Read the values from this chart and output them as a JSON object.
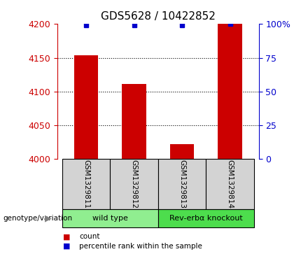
{
  "title": "GDS5628 / 10422852",
  "samples": [
    "GSM1329811",
    "GSM1329812",
    "GSM1329813",
    "GSM1329814"
  ],
  "bar_values": [
    4154,
    4111,
    4022,
    4200
  ],
  "percentile_values": [
    99,
    99,
    99,
    100
  ],
  "ylim_left": [
    4000,
    4200
  ],
  "ylim_right": [
    0,
    100
  ],
  "yticks_left": [
    4000,
    4050,
    4100,
    4150,
    4200
  ],
  "yticks_right": [
    0,
    25,
    50,
    75,
    100
  ],
  "ytick_labels_right": [
    "0",
    "25",
    "50",
    "75",
    "100%"
  ],
  "bar_color": "#cc0000",
  "blue_color": "#0000cc",
  "bar_width": 0.5,
  "groups": [
    {
      "label": "wild type",
      "samples": [
        0,
        1
      ],
      "color": "#90ee90"
    },
    {
      "label": "Rev-erbα knockout",
      "samples": [
        2,
        3
      ],
      "color": "#4ddd4d"
    }
  ],
  "legend_items": [
    {
      "color": "#cc0000",
      "label": "count"
    },
    {
      "color": "#0000cc",
      "label": "percentile rank within the sample"
    }
  ],
  "genotype_label": "genotype/variation",
  "background_color": "#ffffff",
  "sample_cell_color": "#d3d3d3",
  "title_fontsize": 11,
  "tick_fontsize": 9,
  "label_fontsize": 8
}
